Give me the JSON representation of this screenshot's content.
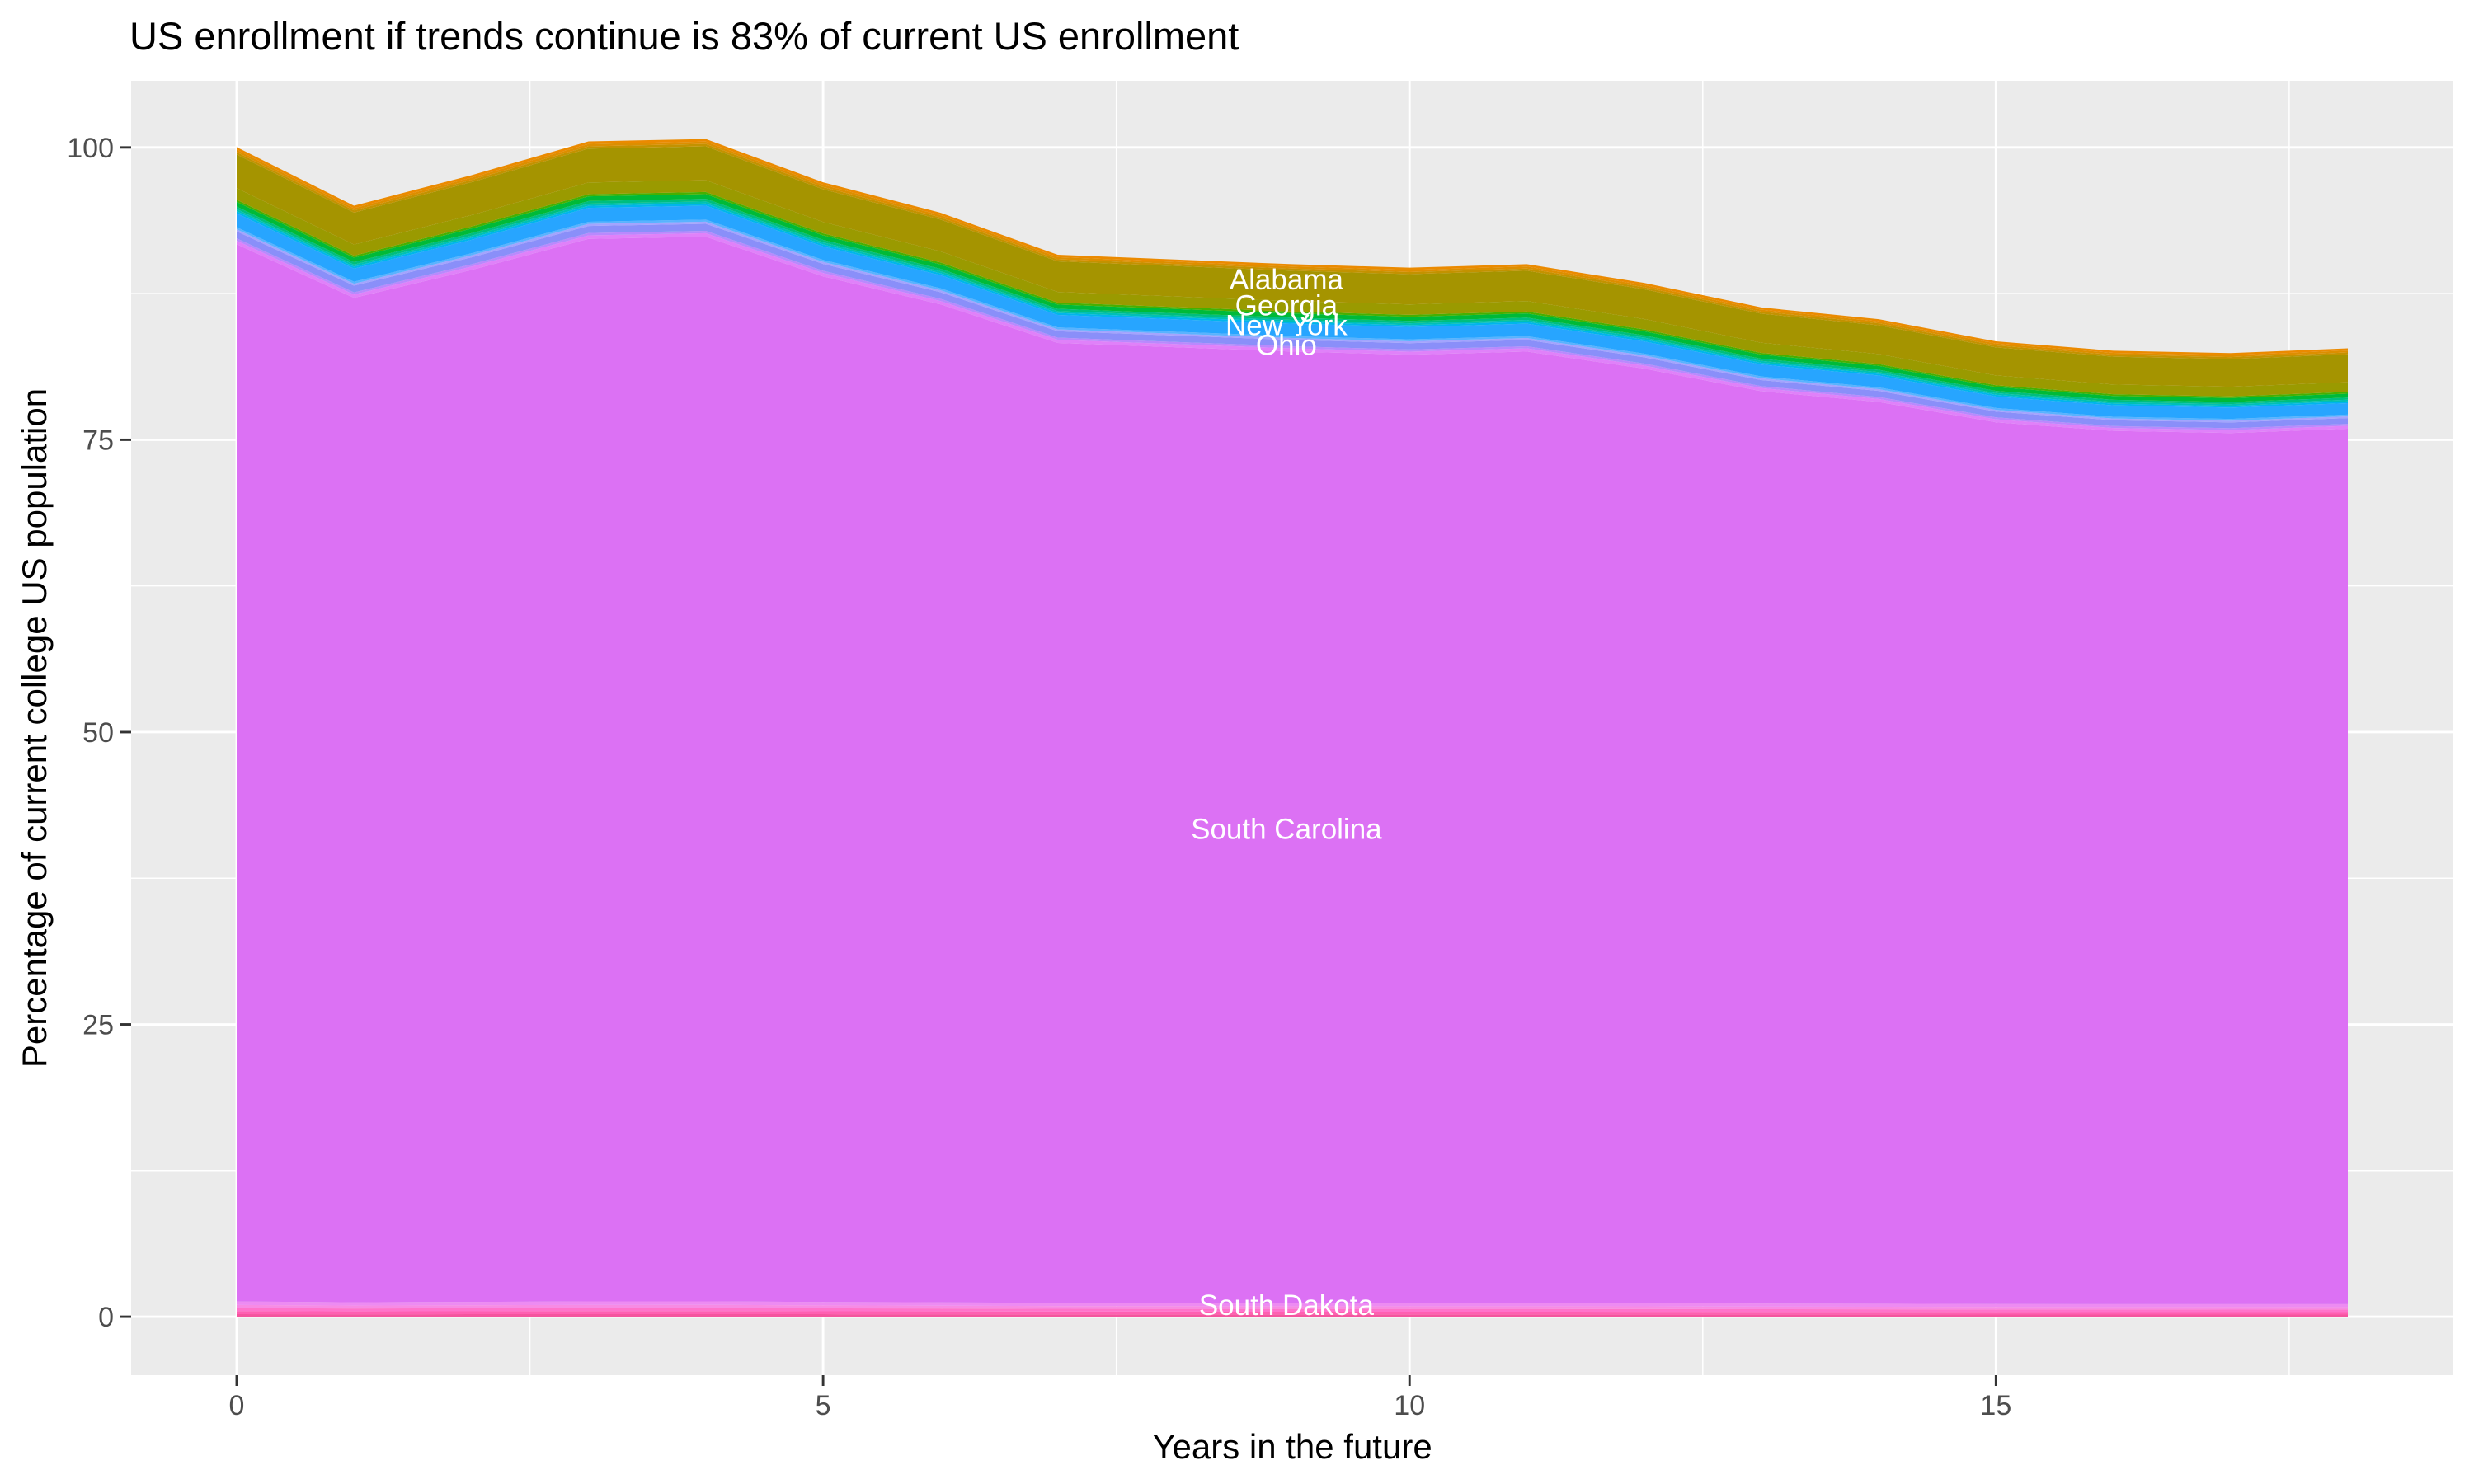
{
  "figure": {
    "title": "US enrollment if trends continue is 83% of current US enrollment"
  },
  "axes": {
    "x": {
      "title": "Years in the future",
      "major_ticks": [
        0,
        5,
        10,
        15
      ],
      "minor_gridlines": [
        2.5,
        7.5,
        12.5,
        17.5
      ],
      "range": [
        -0.9,
        18.9
      ]
    },
    "y": {
      "title": "Percentage of current college US population",
      "major_ticks": [
        0,
        25,
        50,
        75,
        100
      ],
      "minor_gridlines": [
        12.5,
        37.5,
        62.5,
        87.5
      ],
      "range": [
        -5.0,
        105.7
      ]
    }
  },
  "style": {
    "panel_bg": "#EBEBEB",
    "grid_color": "#FFFFFF",
    "grid_major_width": 2.9,
    "grid_minor_width": 1.5,
    "tick_mark_color": "#333333",
    "tick_label_color": "#4D4D4D",
    "title_color": "#000000",
    "state_label_color": "#FFFFFF"
  },
  "chart_data": {
    "type": "area",
    "stacked": true,
    "title": "US enrollment if trends continue is 83% of current US enrollment",
    "xlabel": "Years in the future",
    "ylabel": "Percentage of current college US population",
    "xlim": [
      -0.9,
      18.9
    ],
    "ylim": [
      -5.0,
      105.7
    ],
    "grid": true,
    "legend": "none (direct white labels on bands)",
    "x": [
      0,
      1,
      2,
      3,
      4,
      5,
      6,
      7,
      8,
      9,
      10,
      11,
      12,
      13,
      14,
      15,
      16,
      17,
      18
    ],
    "stack_total_percent": [
      100.0,
      95.0,
      97.6,
      100.5,
      100.7,
      97.0,
      94.4,
      90.8,
      90.4,
      90.0,
      89.7,
      90.0,
      88.4,
      86.3,
      85.3,
      83.4,
      82.6,
      82.4,
      82.8
    ],
    "final_total_percent": 82.8,
    "layers_bottom_to_top": [
      {
        "name": "",
        "color": "#F4549E",
        "fraction": 0.0022
      },
      {
        "name": "",
        "color": "#FF5FB2",
        "fraction": 0.0026
      },
      {
        "name": "",
        "color": "#FF73CB",
        "fraction": 0.0026
      },
      {
        "name": "",
        "color": "#F78BE4",
        "fraction": 0.0026
      },
      {
        "name": "South Dakota",
        "color": "#ED8BF2",
        "fraction": 0.003
      },
      {
        "name": "South Carolina",
        "color": "#DC71F4",
        "fraction": 0.9042
      },
      {
        "name": "",
        "color": "#E081F9",
        "fraction": 0.003
      },
      {
        "name": "",
        "color": "#B989FD",
        "fraction": 0.002
      },
      {
        "name": "Ohio",
        "color": "#8A8FF9",
        "fraction": 0.006
      },
      {
        "name": "",
        "color": "#A3A4FE",
        "fraction": 0.0018
      },
      {
        "name": "",
        "color": "#59B3FF",
        "fraction": 0.0018
      },
      {
        "name": "New York",
        "color": "#27A5FF",
        "fraction": 0.0118
      },
      {
        "name": "",
        "color": "#00B5EC",
        "fraction": 0.0018
      },
      {
        "name": "",
        "color": "#00C0B4",
        "fraction": 0.0018
      },
      {
        "name": "",
        "color": "#00BE7F",
        "fraction": 0.0022
      },
      {
        "name": "",
        "color": "#00BA38",
        "fraction": 0.004
      },
      {
        "name": "",
        "color": "#47B000",
        "fraction": 0.0018
      },
      {
        "name": "Georgia",
        "color": "#9A9A00",
        "fraction": 0.01
      },
      {
        "name": "Alabama",
        "color": "#A59400",
        "fraction": 0.0288
      },
      {
        "name": "",
        "color": "#C39200",
        "fraction": 0.002
      },
      {
        "name": "",
        "color": "#DD8E00",
        "fraction": 0.002
      },
      {
        "name": "",
        "color": "#EB8A00",
        "fraction": 0.0022
      }
    ],
    "labels": [
      {
        "text": "Alabama",
        "x": 8.95,
        "y": 88.7
      },
      {
        "text": "Georgia",
        "x": 8.95,
        "y": 86.5
      },
      {
        "text": "New York",
        "x": 8.95,
        "y": 84.8
      },
      {
        "text": "Ohio",
        "x": 8.95,
        "y": 83.1
      },
      {
        "text": "South Carolina",
        "x": 8.95,
        "y": 41.7
      },
      {
        "text": "South Dakota",
        "x": 8.95,
        "y": 1.0
      }
    ]
  }
}
